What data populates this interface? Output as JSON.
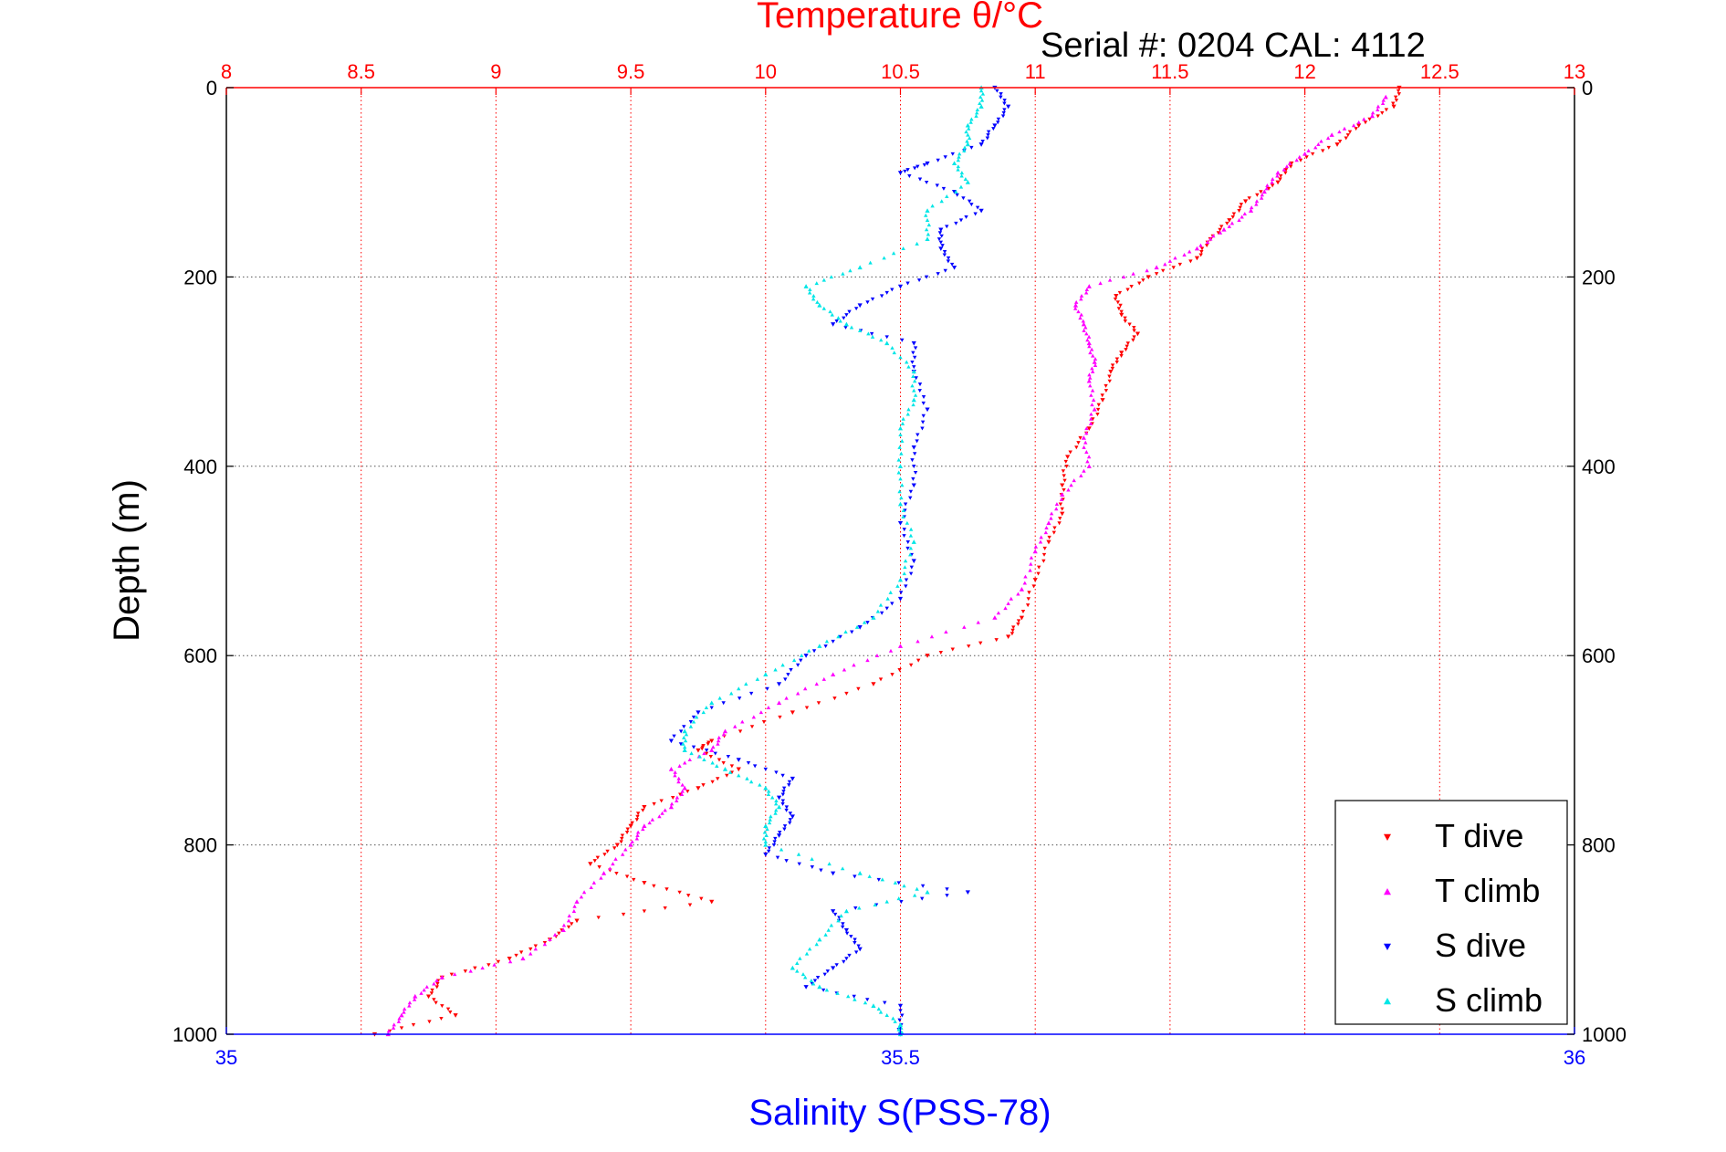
{
  "chart_data": {
    "type": "scatter",
    "title": "Temperature θ/°C",
    "subtitle": "Serial #: 0204  CAL: 4112",
    "ylabel": "Depth (m)",
    "xlabel_bottom": "Salinity S(PSS-78)",
    "top_axis": {
      "label": "Temperature θ/°C",
      "range": [
        8,
        13
      ],
      "ticks": [
        "8",
        "8.5",
        "9",
        "9.5",
        "10",
        "10.5",
        "11",
        "11.5",
        "12",
        "12.5",
        "13"
      ],
      "color": "#ff0000"
    },
    "bottom_axis": {
      "label": "Salinity S(PSS-78)",
      "range": [
        35,
        36
      ],
      "ticks": [
        "35",
        "35.5",
        "36"
      ],
      "color": "#0000ff"
    },
    "y_axis": {
      "label": "Depth (m)",
      "range": [
        0,
        1000
      ],
      "reversed": true,
      "ticks": [
        "0",
        "200",
        "400",
        "600",
        "800",
        "1000"
      ]
    },
    "grid": true,
    "legend_position": "bottom-right",
    "series": [
      {
        "name": "T dive",
        "axis": "temperature",
        "marker": "triangle-down",
        "color": "#ff0000",
        "depth": [
          0,
          20,
          40,
          60,
          80,
          100,
          120,
          140,
          160,
          180,
          200,
          220,
          240,
          260,
          280,
          300,
          330,
          360,
          390,
          420,
          450,
          480,
          520,
          560,
          580,
          600,
          630,
          660,
          690,
          700,
          720,
          740,
          760,
          780,
          800,
          820,
          840,
          860,
          880,
          900,
          920,
          940,
          960,
          980,
          1000
        ],
        "values": [
          12.35,
          12.33,
          12.2,
          12.12,
          11.95,
          11.9,
          11.78,
          11.72,
          11.65,
          11.6,
          11.42,
          11.3,
          11.32,
          11.38,
          11.32,
          11.28,
          11.25,
          11.2,
          11.12,
          11.1,
          11.1,
          11.05,
          11.0,
          10.95,
          10.9,
          10.6,
          10.4,
          10.1,
          9.8,
          9.75,
          9.9,
          9.75,
          9.55,
          9.5,
          9.45,
          9.35,
          9.55,
          9.8,
          9.3,
          9.2,
          9.05,
          8.8,
          8.75,
          8.85,
          8.55
        ]
      },
      {
        "name": "T climb",
        "axis": "temperature",
        "marker": "triangle-up",
        "color": "#ff00ff",
        "depth": [
          10,
          30,
          50,
          70,
          90,
          110,
          130,
          150,
          170,
          190,
          210,
          230,
          250,
          270,
          290,
          310,
          340,
          370,
          400,
          430,
          460,
          490,
          530,
          560,
          590,
          620,
          650,
          680,
          700,
          720,
          740,
          760,
          780,
          800,
          830,
          860,
          890,
          920,
          940,
          960,
          980,
          1000
        ],
        "values": [
          12.3,
          12.25,
          12.1,
          12.0,
          11.9,
          11.85,
          11.8,
          11.7,
          11.6,
          11.45,
          11.2,
          11.15,
          11.18,
          11.2,
          11.22,
          11.2,
          11.22,
          11.18,
          11.2,
          11.1,
          11.05,
          11.0,
          10.95,
          10.85,
          10.5,
          10.25,
          10.05,
          9.85,
          9.8,
          9.65,
          9.7,
          9.65,
          9.55,
          9.5,
          9.4,
          9.3,
          9.25,
          9.1,
          8.8,
          8.7,
          8.65,
          8.6
        ]
      },
      {
        "name": "S dive",
        "axis": "salinity",
        "marker": "triangle-down",
        "color": "#0000ff",
        "depth": [
          0,
          20,
          40,
          60,
          80,
          90,
          110,
          130,
          150,
          170,
          190,
          210,
          230,
          250,
          270,
          300,
          340,
          380,
          420,
          460,
          500,
          540,
          570,
          600,
          630,
          660,
          690,
          710,
          730,
          750,
          770,
          790,
          810,
          830,
          850,
          870,
          890,
          910,
          930,
          950,
          970,
          1000
        ],
        "values": [
          35.57,
          35.58,
          35.57,
          35.56,
          35.52,
          35.5,
          35.54,
          35.56,
          35.53,
          35.53,
          35.54,
          35.5,
          35.47,
          35.45,
          35.51,
          35.51,
          35.52,
          35.51,
          35.51,
          35.5,
          35.51,
          35.5,
          35.47,
          35.43,
          35.41,
          35.35,
          35.33,
          35.38,
          35.42,
          35.41,
          35.42,
          35.41,
          35.4,
          35.45,
          35.55,
          35.45,
          35.46,
          35.47,
          35.45,
          35.43,
          35.5,
          35.5
        ]
      },
      {
        "name": "S climb",
        "axis": "salinity",
        "marker": "triangle-up",
        "color": "#00e6e6",
        "depth": [
          0,
          20,
          40,
          60,
          80,
          100,
          130,
          160,
          190,
          210,
          230,
          250,
          270,
          300,
          330,
          360,
          400,
          440,
          480,
          520,
          560,
          590,
          620,
          650,
          680,
          700,
          720,
          740,
          760,
          780,
          800,
          830,
          850,
          870,
          900,
          930,
          950,
          970,
          990,
          1000
        ],
        "values": [
          35.56,
          35.56,
          35.55,
          35.55,
          35.54,
          35.55,
          35.52,
          35.52,
          35.47,
          35.43,
          35.44,
          35.46,
          35.49,
          35.51,
          35.51,
          35.5,
          35.5,
          35.5,
          35.51,
          35.5,
          35.48,
          35.44,
          35.4,
          35.36,
          35.34,
          35.34,
          35.37,
          35.4,
          35.41,
          35.4,
          35.4,
          35.47,
          35.52,
          35.46,
          35.44,
          35.42,
          35.44,
          35.48,
          35.5,
          35.5
        ]
      }
    ]
  }
}
